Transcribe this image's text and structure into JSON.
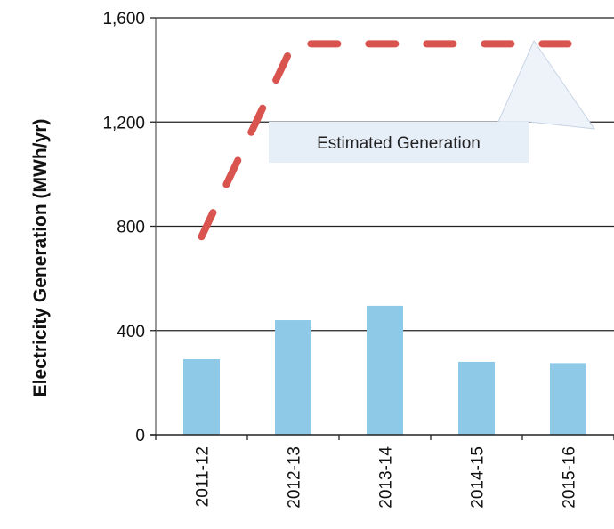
{
  "chart_data": {
    "type": "bar",
    "categories": [
      "2011-12",
      "2012-13",
      "2013-14",
      "2014-15",
      "2015-16"
    ],
    "values": [
      290,
      440,
      495,
      280,
      275
    ],
    "bar_color": "#8ecae8",
    "ylabel": "Electricity Generation (MWh/yr)",
    "ylim": [
      0,
      1600
    ],
    "yticks": [
      0,
      400,
      800,
      1200,
      1600
    ],
    "ytick_labels": [
      "0",
      "400",
      "800",
      "1,200",
      "1,600"
    ],
    "grid": "horizontal",
    "estimated_line": {
      "style": "dashed",
      "color": "#d9534f",
      "x_start": 0,
      "points": [
        [
          0,
          760
        ],
        [
          1,
          1500
        ],
        [
          4,
          1500
        ]
      ]
    },
    "annotation": {
      "text": "Estimated Generation",
      "background": "#e6eef8"
    }
  }
}
